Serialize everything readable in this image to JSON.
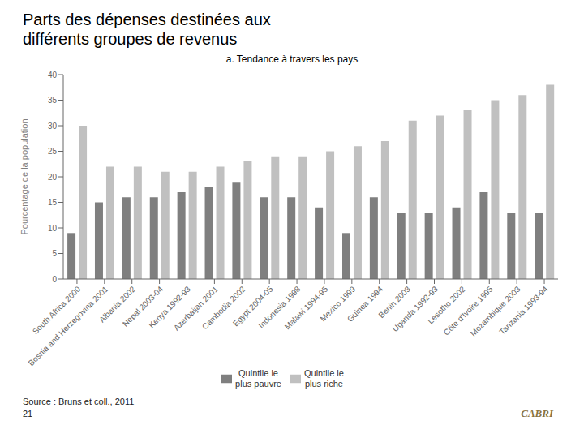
{
  "chart_data": {
    "type": "bar",
    "title": "Parts des dépenses destinées aux\ndifférents groupes de revenus",
    "subtitle": "a. Tendance à travers les pays",
    "ylabel": "Pourcentage de la population",
    "categories": [
      "South Africa 2000",
      "Bosnia and Herzegovina 2001",
      "Albania 2002",
      "Nepal 2003-04",
      "Kenya 1992-93",
      "Azerbaijan 2001",
      "Cambodia 2002",
      "Egypt 2004-05",
      "Indonesia 1998",
      "Malawi 1994-95",
      "Mexico 1999",
      "Guinea 1994",
      "Benin 2003",
      "Uganda 1992-93",
      "Lesotho 2002",
      "Côte d'Ivoire 1995",
      "Mozambique 2003",
      "Tanzania 1993-94"
    ],
    "series": [
      {
        "name": "Quintile le\nplus pauvre",
        "color": "#7f7f7f",
        "values": [
          9,
          15,
          16,
          16,
          17,
          18,
          19,
          16,
          16,
          14,
          9,
          16,
          13,
          13,
          14,
          17,
          13,
          13
        ]
      },
      {
        "name": "Quintile le\nplus riche",
        "color": "#c0c0c0",
        "values": [
          30,
          22,
          22,
          21,
          21,
          22,
          23,
          24,
          24,
          25,
          26,
          27,
          31,
          32,
          33,
          35,
          36,
          38
        ]
      }
    ],
    "ylim": [
      0,
      40
    ],
    "yticks": [
      0,
      5,
      10,
      15,
      20,
      25,
      30,
      35,
      40
    ],
    "grid": false,
    "legend": "bottom",
    "annotations": [
      "Source : Bruns et coll., 2011",
      "21",
      "CABRI"
    ]
  }
}
